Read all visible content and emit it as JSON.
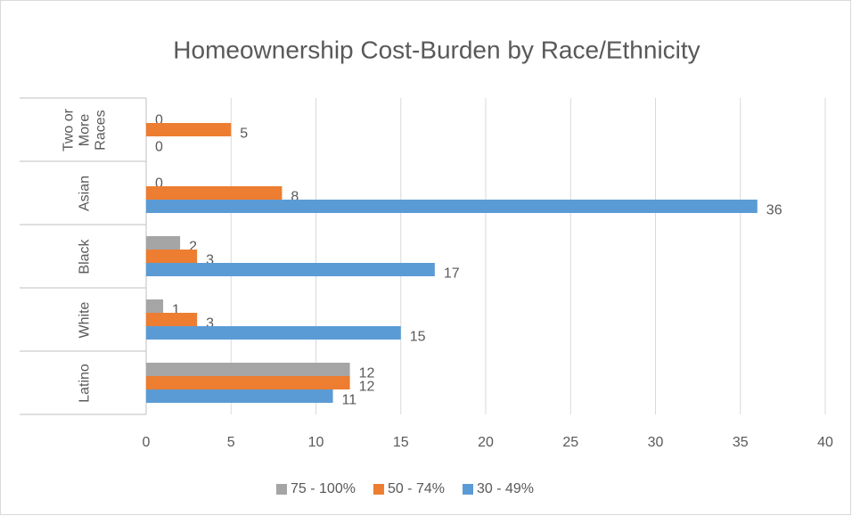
{
  "chart_data": {
    "type": "hbar",
    "title": "Homeownership Cost-Burden by Race/Ethnicity",
    "categories": [
      "Two or More Races",
      "Asian",
      "Black",
      "White",
      "Latino"
    ],
    "series": [
      {
        "name": "75 - 100%",
        "color": "#a5a5a5",
        "values": [
          0,
          0,
          2,
          1,
          12
        ]
      },
      {
        "name": "50 - 74%",
        "color": "#ed7d31",
        "values": [
          5,
          8,
          3,
          3,
          12
        ]
      },
      {
        "name": "30 - 49%",
        "color": "#5b9bd5",
        "values": [
          0,
          36,
          17,
          15,
          11
        ]
      }
    ],
    "xlim": [
      0,
      40
    ],
    "xticks": [
      0,
      5,
      10,
      15,
      20,
      25,
      30,
      35,
      40
    ],
    "grid": true,
    "legend": "bottom"
  }
}
